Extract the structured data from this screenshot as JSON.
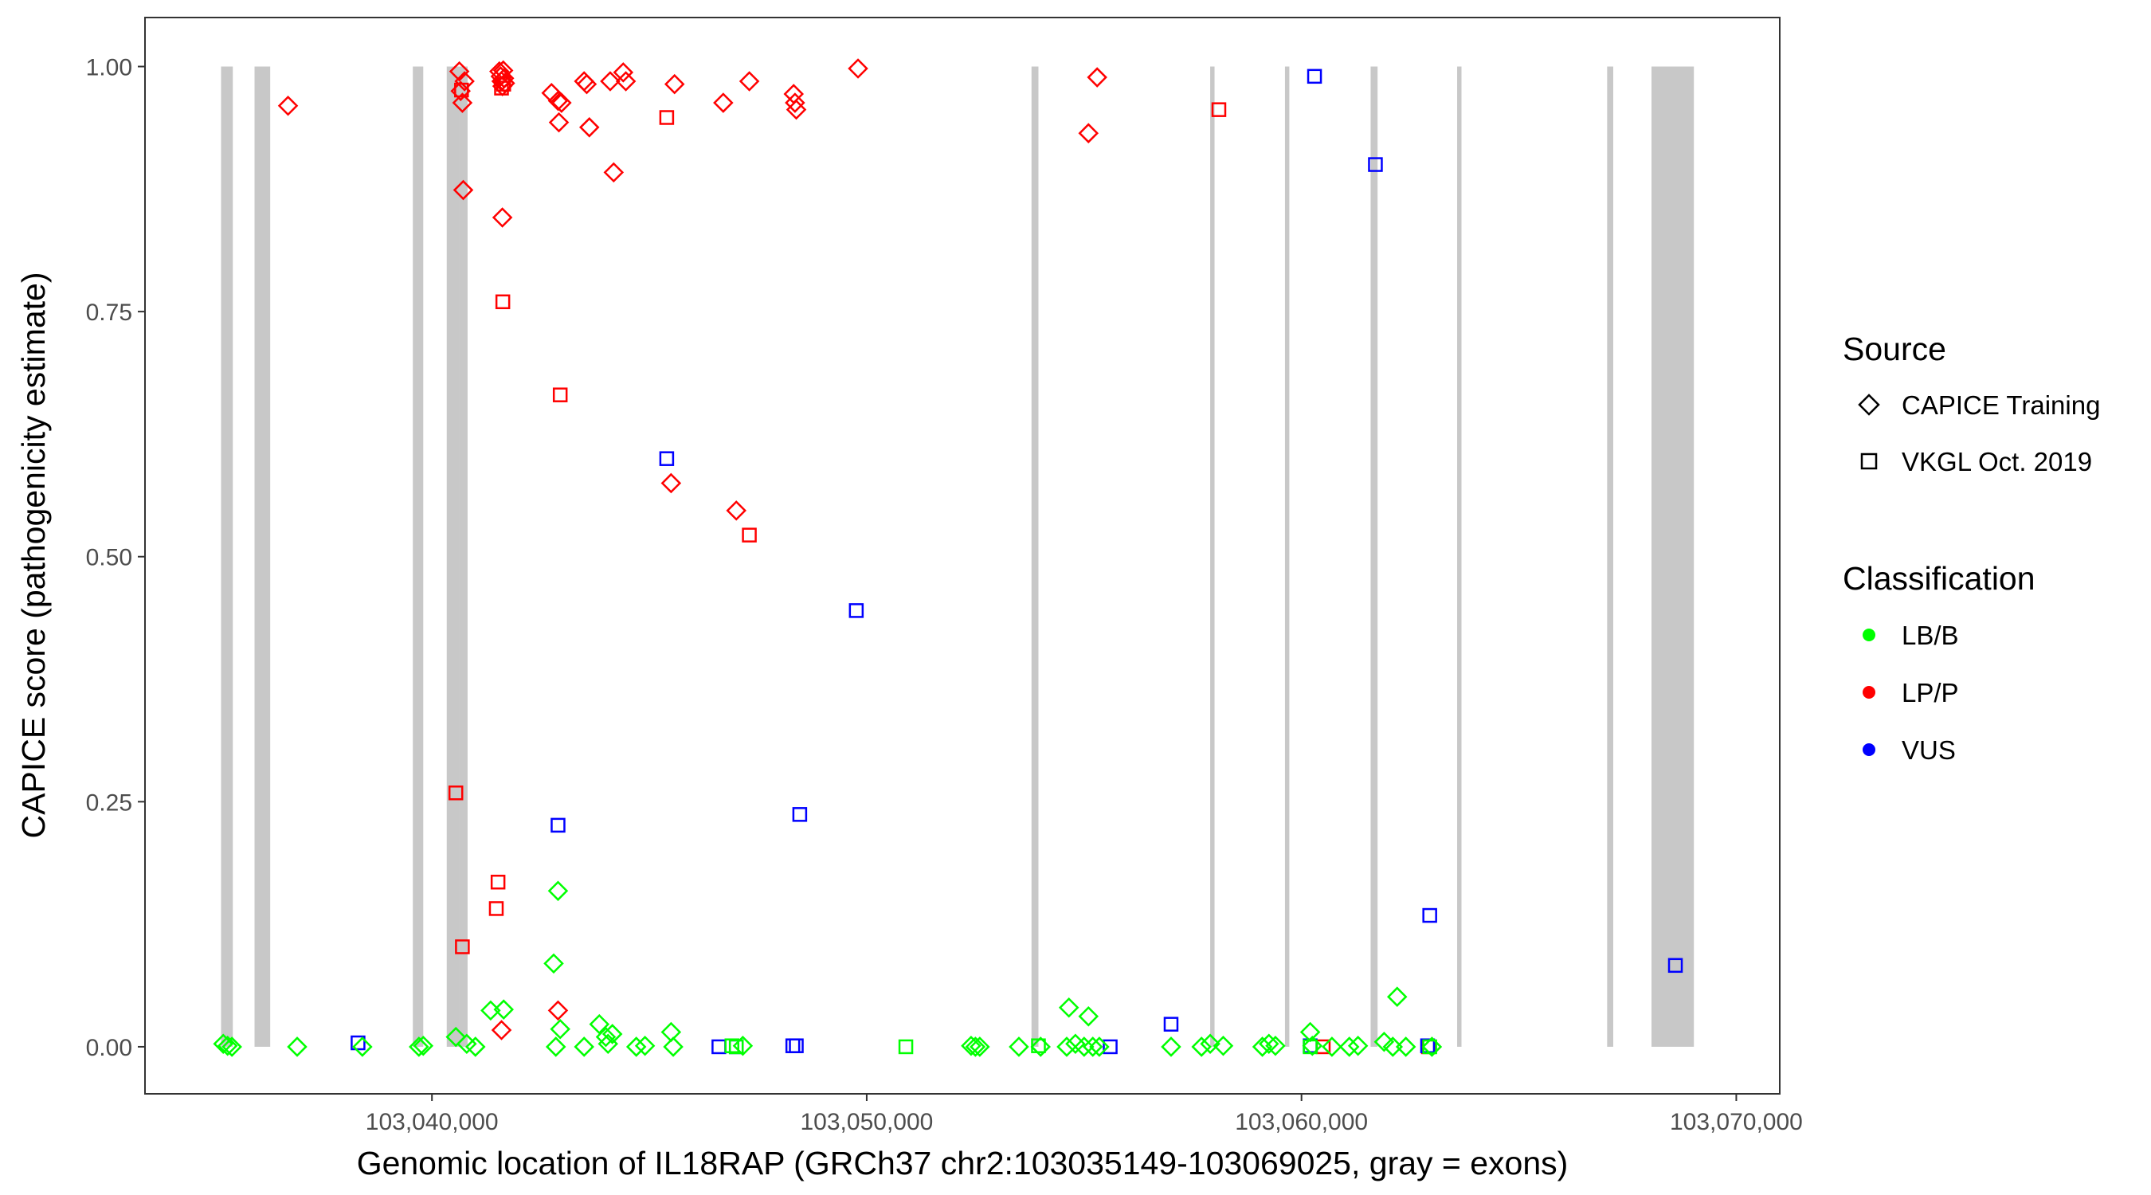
{
  "chart_data": {
    "type": "scatter",
    "title": "",
    "xlabel": "Genomic location of IL18RAP (GRCh37 chr2:103035149-103069025, gray = exons)",
    "ylabel": "CAPICE score (pathogenicity estimate)",
    "xlim": [
      103033400,
      103071000
    ],
    "ylim": [
      -0.048,
      1.05
    ],
    "x_ticks": [
      103040000,
      103050000,
      103060000,
      103070000
    ],
    "x_tick_labels": [
      "103,040,000",
      "103,050,000",
      "103,060,000",
      "103,070,000"
    ],
    "y_ticks": [
      0,
      0.25,
      0.5,
      0.75,
      1.0
    ],
    "y_tick_labels": [
      "0.00",
      "0.25",
      "0.50",
      "0.75",
      "1.00"
    ],
    "grid": false,
    "exon_color": "#c8c8c8",
    "exons": [
      [
        103035149,
        103035420
      ],
      [
        103035920,
        103036280
      ],
      [
        103039560,
        103039800
      ],
      [
        103040340,
        103040620
      ],
      [
        103040620,
        103040820
      ],
      [
        103053790,
        103053950
      ],
      [
        103057900,
        103058000
      ],
      [
        103059620,
        103059720
      ],
      [
        103061590,
        103061750
      ],
      [
        103063580,
        103063680
      ],
      [
        103067030,
        103067170
      ],
      [
        103068050,
        103069025
      ]
    ],
    "legend": {
      "position": "right",
      "source_title": "Source",
      "source_entries": [
        {
          "label": "CAPICE Training",
          "shape": "diamond"
        },
        {
          "label": "VKGL Oct. 2019",
          "shape": "square"
        }
      ],
      "classification_title": "Classification",
      "classification_entries": [
        {
          "label": "LB/B",
          "color": "#00ff00"
        },
        {
          "label": "LP/P",
          "color": "#ff0000"
        },
        {
          "label": "VUS",
          "color": "#0000ff"
        }
      ]
    },
    "series": [
      {
        "source": "CAPICE Training",
        "classification": "LP/P",
        "shape": "diamond",
        "color": "#ff0000",
        "x": [
          103036690,
          103040630,
          103040660,
          103040700,
          103040720,
          103040750,
          103041550,
          103041580,
          103041600,
          103041620,
          103041640,
          103041660,
          103041680,
          103041620,
          103042750,
          103042900,
          103042920,
          103042980,
          103043500,
          103043560,
          103043620,
          103044100,
          103044180,
          103044400,
          103044460,
          103045580,
          103045500,
          103046700,
          103047000,
          103047300,
          103048320,
          103048350,
          103048380,
          103049800,
          103055100,
          103055300,
          103042900,
          103041600
        ],
        "y": [
          0.96,
          0.995,
          0.975,
          0.963,
          0.874,
          0.985,
          0.995,
          0.99,
          0.985,
          0.98,
          0.996,
          0.988,
          0.983,
          0.846,
          0.973,
          0.965,
          0.943,
          0.963,
          0.985,
          0.982,
          0.938,
          0.985,
          0.892,
          0.994,
          0.985,
          0.982,
          0.575,
          0.963,
          0.547,
          0.985,
          0.972,
          0.963,
          0.956,
          0.998,
          0.932,
          0.989,
          0.037,
          0.017
        ]
      },
      {
        "source": "VKGL Oct. 2019",
        "classification": "LP/P",
        "shape": "square",
        "color": "#ff0000",
        "x": [
          103040680,
          103041600,
          103041650,
          103041630,
          103042950,
          103045400,
          103047300,
          103040550,
          103041520,
          103041480,
          103040700,
          103058100,
          103060500,
          103062920
        ],
        "y": [
          0.976,
          0.978,
          0.982,
          0.76,
          0.665,
          0.948,
          0.522,
          0.259,
          0.168,
          0.141,
          0.102,
          0.956,
          0.0,
          0.0
        ]
      },
      {
        "source": "VKGL Oct. 2019",
        "classification": "VUS",
        "shape": "square",
        "color": "#0000ff",
        "x": [
          103038300,
          103042900,
          103045400,
          103048460,
          103049760,
          103046600,
          103047000,
          103048300,
          103048380,
          103055600,
          103057000,
          103060300,
          103060200,
          103061700,
          103062950,
          103062900,
          103068600
        ],
        "y": [
          0.004,
          0.226,
          0.6,
          0.237,
          0.445,
          0.0,
          0.0,
          0.001,
          0.001,
          0.0,
          0.023,
          0.99,
          0.001,
          0.9,
          0.134,
          0.001,
          0.083
        ]
      },
      {
        "source": "CAPICE Training",
        "classification": "LB/B",
        "shape": "diamond",
        "color": "#00ff00",
        "x": [
          103035200,
          103035300,
          103035400,
          103036900,
          103038400,
          103039700,
          103039800,
          103040550,
          103040800,
          103041000,
          103041350,
          103041650,
          103042800,
          103042850,
          103042900,
          103042950,
          103043500,
          103043850,
          103044000,
          103044050,
          103044150,
          103044700,
          103044900,
          103045500,
          103045550,
          103047150,
          103052400,
          103052500,
          103052600,
          103053500,
          103054000,
          103054600,
          103054650,
          103054800,
          103055000,
          103055100,
          103055200,
          103055350,
          103057000,
          103057700,
          103057900,
          103058200,
          103059100,
          103059250,
          103059400,
          103060200,
          103060250,
          103060700,
          103061100,
          103061300,
          103061900,
          103062100,
          103062200,
          103062400,
          103063000
        ],
        "y": [
          0.003,
          0.001,
          0.0,
          0.0,
          0.0,
          0.0,
          0.001,
          0.01,
          0.003,
          0.0,
          0.037,
          0.038,
          0.085,
          0.0,
          0.159,
          0.018,
          0.0,
          0.023,
          0.01,
          0.003,
          0.013,
          0.0,
          0.001,
          0.015,
          0.0,
          0.001,
          0.001,
          0.0,
          0.0,
          0.0,
          0.0,
          0.0,
          0.04,
          0.003,
          0.0,
          0.031,
          0.0,
          0.0,
          0.0,
          0.0,
          0.003,
          0.001,
          0.0,
          0.003,
          0.001,
          0.015,
          0.001,
          0.0,
          0.0,
          0.001,
          0.005,
          0.0,
          0.051,
          0.0,
          0.0
        ]
      },
      {
        "source": "VKGL Oct. 2019",
        "classification": "LB/B",
        "shape": "square",
        "color": "#00ff00",
        "x": [
          103046900,
          103047000,
          103050900,
          103053950,
          103060200,
          103062950
        ],
        "y": [
          0.001,
          0.0,
          0.0,
          0.001,
          0.0,
          0.0
        ]
      }
    ]
  }
}
